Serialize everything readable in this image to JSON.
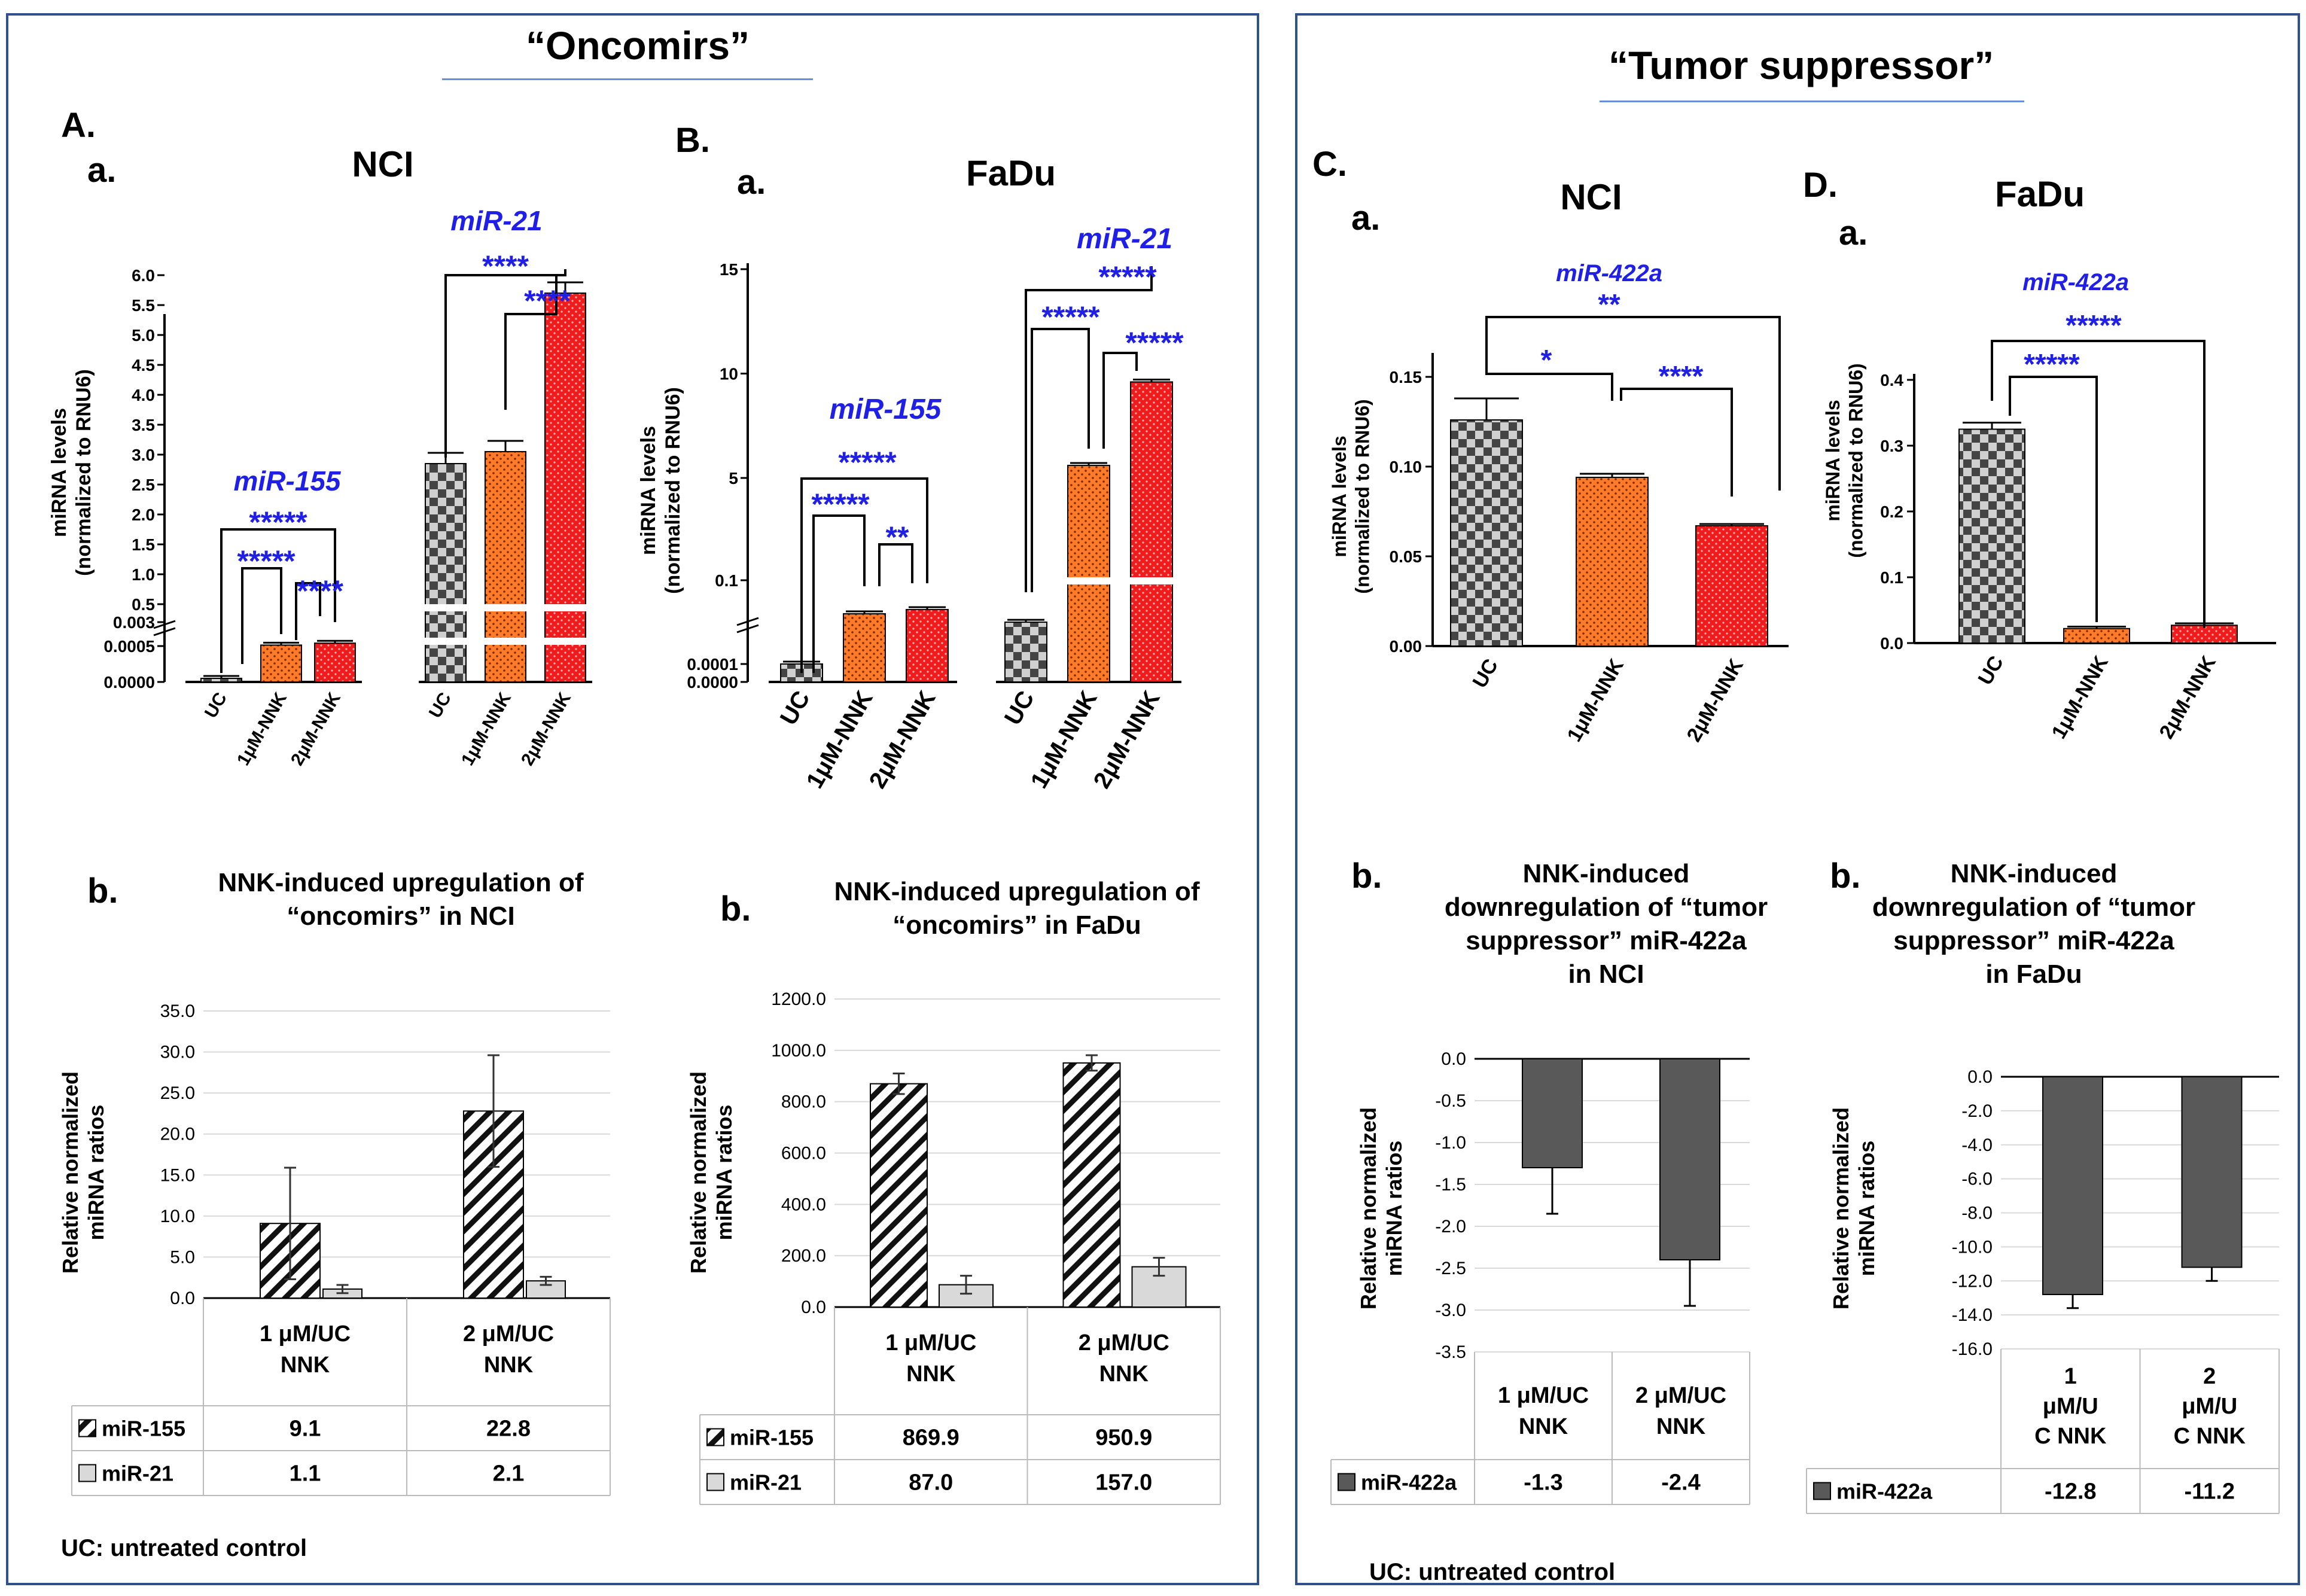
{
  "panels": {
    "left": {
      "title": "“Oncomirs”",
      "uc_note": "UC: untreated control"
    },
    "right": {
      "title": "“Tumor suppressor”",
      "uc_note": "UC: untreated control"
    }
  },
  "colors": {
    "blue_text": "#1f1fe6",
    "frame": "#2f528f",
    "underline": "#6a8fd8",
    "orange": "#ff7b2a",
    "red": "#ee1c1c",
    "check": "#555555",
    "bar_dark": "#595959"
  },
  "section_labels": {
    "A": "A.",
    "B": "B.",
    "C": "C.",
    "D": "D.",
    "a": "a.",
    "b": "b."
  },
  "chart_data": [
    {
      "id": "A",
      "type": "bar",
      "title": "NCI",
      "ylabel": "miRNA levels",
      "ylabel2": "(normalized to RNU6)",
      "yticks": [
        "0.0000",
        "0.0005",
        "0.003",
        "0.5",
        "1.0",
        "1.5",
        "2.0",
        "2.5",
        "3.0",
        "3.5",
        "4.0",
        "4.5",
        "5.0",
        "5.5",
        "6.0"
      ],
      "categories": [
        "UC",
        "1μM-NNK",
        "2μM-NNK"
      ],
      "series": [
        {
          "name": "miR-155",
          "values": [
            5e-05,
            0.0006,
            0.0008
          ],
          "stars": [
            "*****",
            "*****",
            "****"
          ]
        },
        {
          "name": "miR-21",
          "values": [
            2.85,
            3.05,
            5.7
          ],
          "stars": [
            "****",
            "****"
          ]
        }
      ]
    },
    {
      "id": "B",
      "type": "bar",
      "title": "FaDu",
      "ylabel": "miRNA levels",
      "ylabel2": "(normalized to RNU6)",
      "yticks": [
        "0.0000",
        "0.0001",
        "0.1",
        "5",
        "10",
        "15"
      ],
      "categories": [
        "UC",
        "1μM-NNK",
        "2μM-NNK"
      ],
      "series": [
        {
          "name": "miR-155",
          "values": [
            0.0001,
            0.06,
            0.065
          ],
          "stars": [
            "*****",
            "*****",
            "**"
          ]
        },
        {
          "name": "miR-21",
          "values": [
            0.05,
            5.6,
            9.6
          ],
          "stars": [
            "*****",
            "*****",
            "*****"
          ]
        }
      ]
    },
    {
      "id": "C",
      "type": "bar",
      "title": "NCI",
      "ylabel": "miRNA levels",
      "ylabel2": "(normalized to RNU6)",
      "yticks": [
        "0.00",
        "0.05",
        "0.10",
        "0.15"
      ],
      "ylim": [
        0,
        0.16
      ],
      "categories": [
        "UC",
        "1μM-NNK",
        "2μM-NNK"
      ],
      "series": [
        {
          "name": "miR-422a",
          "values": [
            0.126,
            0.094,
            0.067
          ],
          "errors": [
            0.012,
            0.002,
            0.001
          ],
          "stars": [
            "**",
            "*",
            "****"
          ]
        }
      ]
    },
    {
      "id": "D",
      "type": "bar",
      "title": "FaDu",
      "ylabel": "miRNA levels",
      "ylabel2": "(normalized to RNU6)",
      "yticks": [
        "0.0",
        "0.1",
        "0.2",
        "0.3",
        "0.4"
      ],
      "ylim": [
        0,
        0.4
      ],
      "categories": [
        "UC",
        "1μM-NNK",
        "2μM-NNK"
      ],
      "series": [
        {
          "name": "miR-422a",
          "values": [
            0.325,
            0.022,
            0.027
          ],
          "errors": [
            0.01,
            0.003,
            0.003
          ],
          "stars": [
            "*****",
            "*****"
          ]
        }
      ]
    },
    {
      "id": "Ab",
      "type": "bar",
      "title": "NNK-induced upregulation of",
      "title2": "“oncomirs” in NCI",
      "ylabel": "Relative normalized",
      "ylabel2": "miRNA ratios",
      "yticks": [
        "0.0",
        "5.0",
        "10.0",
        "15.0",
        "20.0",
        "25.0",
        "30.0",
        "35.0"
      ],
      "ylim": [
        0,
        35
      ],
      "categories": [
        [
          "1 μM/UC",
          "NNK"
        ],
        [
          "2 μM/UC",
          "NNK"
        ]
      ],
      "series": [
        {
          "name": "miR-155",
          "values": [
            9.1,
            22.8
          ],
          "labels": [
            "9.1",
            "22.8"
          ],
          "errors": [
            6.8,
            6.8
          ]
        },
        {
          "name": "miR-21",
          "values": [
            1.1,
            2.1
          ],
          "labels": [
            "1.1",
            "2.1"
          ],
          "errors": [
            0.5,
            0.5
          ]
        }
      ]
    },
    {
      "id": "Bb",
      "type": "bar",
      "title": "NNK-induced upregulation of",
      "title2": "“oncomirs” in FaDu",
      "ylabel": "Relative normalized",
      "ylabel2": "miRNA ratios",
      "yticks": [
        "0.0",
        "200.0",
        "400.0",
        "600.0",
        "800.0",
        "1000.0",
        "1200.0"
      ],
      "ylim": [
        0,
        1200
      ],
      "categories": [
        [
          "1 μM/UC",
          "NNK"
        ],
        [
          "2 μM/UC",
          "NNK"
        ]
      ],
      "series": [
        {
          "name": "miR-155",
          "values": [
            869.9,
            950.9
          ],
          "labels": [
            "869.9",
            "950.9"
          ],
          "errors": [
            40,
            30
          ]
        },
        {
          "name": "miR-21",
          "values": [
            87.0,
            157.0
          ],
          "labels": [
            "87.0",
            "157.0"
          ],
          "errors": [
            35,
            35
          ]
        }
      ]
    },
    {
      "id": "Cb",
      "type": "bar",
      "title": "NNK-induced",
      "title2": "downregulation of “tumor",
      "title3": "suppressor” miR-422a",
      "title4": "in NCI",
      "ylabel": "Relative normalized",
      "ylabel2": "miRNA ratios",
      "yticks": [
        "0.0",
        "-0.5",
        "-1.0",
        "-1.5",
        "-2.0",
        "-2.5",
        "-3.0",
        "-3.5"
      ],
      "ylim": [
        -3.5,
        0
      ],
      "categories": [
        [
          "1 μM/UC",
          "NNK"
        ],
        [
          "2 μM/UC",
          "NNK"
        ]
      ],
      "series": [
        {
          "name": "miR-422a",
          "values": [
            -1.3,
            -2.4
          ],
          "labels": [
            "-1.3",
            "-2.4"
          ],
          "errors": [
            0.55,
            0.55
          ]
        }
      ]
    },
    {
      "id": "Db",
      "type": "bar",
      "title": "NNK-induced",
      "title2": "downregulation of “tumor",
      "title3": "suppressor” miR-422a",
      "title4": "in FaDu",
      "ylabel": "Relative normalized",
      "ylabel2": "miRNA ratios",
      "yticks": [
        "0.0",
        "-2.0",
        "-4.0",
        "-6.0",
        "-8.0",
        "-10.0",
        "-12.0",
        "-14.0",
        "-16.0"
      ],
      "ylim": [
        -16,
        0
      ],
      "categories": [
        [
          "1",
          "μM/U",
          "C NNK"
        ],
        [
          "2",
          "μM/U",
          "C NNK"
        ]
      ],
      "series": [
        {
          "name": "miR-422a",
          "values": [
            -12.8,
            -11.2
          ],
          "labels": [
            "-12.8",
            "-11.2"
          ],
          "errors": [
            0.8,
            0.8
          ]
        }
      ]
    }
  ]
}
